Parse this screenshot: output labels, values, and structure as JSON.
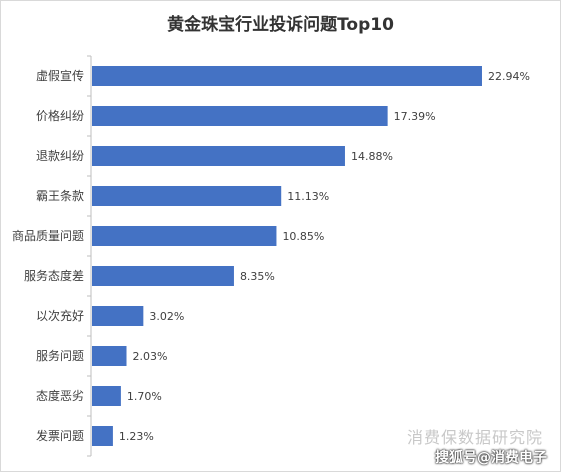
{
  "chart_data": {
    "type": "bar",
    "orientation": "horizontal",
    "title": "黄金珠宝行业投诉问题Top10",
    "categories": [
      "虚假宣传",
      "价格纠纷",
      "退款纠纷",
      "霸王条款",
      "商品质量问题",
      "服务态度差",
      "以次充好",
      "服务问题",
      "态度恶劣",
      "发票问题"
    ],
    "values": [
      22.94,
      17.39,
      14.88,
      11.13,
      10.85,
      8.35,
      3.02,
      2.03,
      1.7,
      1.23
    ],
    "value_labels": [
      "22.94%",
      "17.39%",
      "14.88%",
      "11.13%",
      "10.85%",
      "8.35%",
      "3.02%",
      "2.03%",
      "1.70%",
      "1.23%"
    ],
    "unit": "%",
    "xlim": [
      0,
      25
    ],
    "bar_color": "#4472c4",
    "grid": false,
    "legend": "none"
  },
  "watermark": "消费保数据研究院",
  "credit": "搜狐号@消费电子"
}
